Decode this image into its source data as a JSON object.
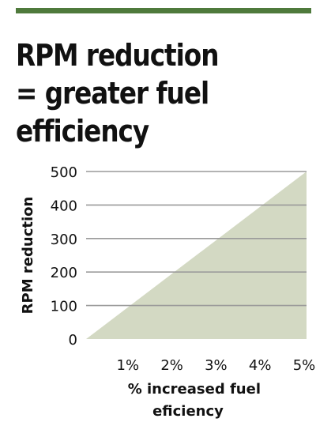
{
  "header": {
    "title_lines": [
      "RPM reduction",
      "= greater fuel",
      "efficiency"
    ]
  },
  "colors": {
    "accent_rule": "#4f7a3c",
    "area_fill": "#d3d9c3",
    "grid": "#9a9a9a",
    "text": "#111111"
  },
  "chart_data": {
    "type": "area",
    "title": "RPM reduction = greater fuel efficiency",
    "xlabel": "% increased fuel eficiency",
    "ylabel": "RPM reduction",
    "x": [
      0,
      5
    ],
    "series": [
      {
        "values": [
          0,
          500
        ]
      }
    ],
    "xlim": [
      0,
      5
    ],
    "ylim": [
      0,
      500
    ],
    "x_tick_values": [
      1,
      2,
      3,
      4,
      5
    ],
    "x_tick_labels": [
      "1%",
      "2%",
      "3%",
      "4%",
      "5%"
    ],
    "y_tick_values": [
      0,
      100,
      200,
      300,
      400,
      500
    ],
    "y_tick_labels": [
      "0",
      "100",
      "200",
      "300",
      "400",
      "500"
    ],
    "grid": "horizontal",
    "legend": "none"
  }
}
